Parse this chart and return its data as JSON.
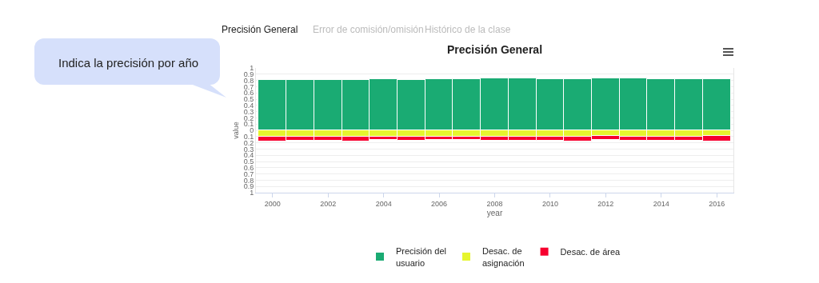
{
  "chart_data": {
    "type": "bar",
    "title": "Precisión General",
    "xlabel": "year",
    "ylabel": "value",
    "annotations": [
      "Precisión General",
      "Error de comisión/omisión",
      "Histórico de la clase",
      "Indica la precisión por año"
    ],
    "x": [
      2000,
      2001,
      2002,
      2003,
      2004,
      2005,
      2006,
      2007,
      2008,
      2009,
      2010,
      2011,
      2012,
      2013,
      2014,
      2015,
      2016
    ],
    "stacked": true,
    "series": [
      {
        "name": "Precisión del usuario",
        "color": "#1aab73",
        "values": [
          0.81,
          0.81,
          0.81,
          0.81,
          0.82,
          0.81,
          0.82,
          0.82,
          0.83,
          0.83,
          0.82,
          0.82,
          0.83,
          0.83,
          0.82,
          0.82,
          0.82
        ]
      },
      {
        "name": "Desac. de asignación",
        "color": "#e6f52e",
        "values": [
          -0.1,
          -0.1,
          -0.1,
          -0.1,
          -0.1,
          -0.1,
          -0.1,
          -0.1,
          -0.1,
          -0.1,
          -0.1,
          -0.1,
          -0.09,
          -0.1,
          -0.1,
          -0.1,
          -0.09
        ]
      },
      {
        "name": "Desac. de área",
        "color": "#f7002f",
        "values": [
          -0.08,
          -0.07,
          -0.07,
          -0.08,
          -0.06,
          -0.07,
          -0.06,
          -0.06,
          -0.07,
          -0.07,
          -0.07,
          -0.08,
          -0.07,
          -0.07,
          -0.07,
          -0.07,
          -0.09
        ]
      }
    ],
    "xlim": [
      1999.4,
      2016.6
    ],
    "xticks": [
      2000,
      2002,
      2004,
      2006,
      2008,
      2010,
      2012,
      2014,
      2016
    ],
    "ylim": [
      -1,
      1
    ],
    "yticks": [
      {
        "value": -1,
        "label": "1"
      },
      {
        "value": -0.9,
        "label": "0.9"
      },
      {
        "value": -0.8,
        "label": "0.8"
      },
      {
        "value": -0.7,
        "label": "0.7"
      },
      {
        "value": -0.6,
        "label": "0.6"
      },
      {
        "value": -0.5,
        "label": "0.5"
      },
      {
        "value": -0.4,
        "label": "0.4"
      },
      {
        "value": -0.3,
        "label": "0.3"
      },
      {
        "value": -0.2,
        "label": "0.2"
      },
      {
        "value": -0.1,
        "label": "0.1"
      },
      0,
      0.1,
      0.2,
      0.3,
      0.4,
      0.5,
      0.6,
      0.7,
      0.8,
      0.9,
      1
    ],
    "grid": "y",
    "legend": "bottom"
  }
}
